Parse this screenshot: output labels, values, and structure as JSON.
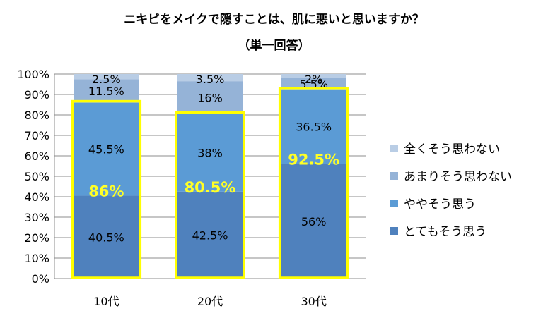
{
  "title": "ニキビをメイクで隠すことは、肌に悪いと思いますか？",
  "subtitle": "（単一回答）",
  "chart_data": {
    "type": "bar",
    "stacked": true,
    "categories": [
      "10代",
      "20代",
      "30代"
    ],
    "series": [
      {
        "name": "とてもそう思う",
        "values": [
          40.5,
          42.5,
          56
        ],
        "labels": [
          "40.5%",
          "42.5%",
          "56%"
        ],
        "color": "#4f81bd"
      },
      {
        "name": "ややそう思う",
        "values": [
          45.5,
          38,
          36.5
        ],
        "labels": [
          "45.5%",
          "38%",
          "36.5%"
        ],
        "color": "#5b9bd5"
      },
      {
        "name": "あまりそう思わない",
        "values": [
          11.5,
          16,
          5.5
        ],
        "labels": [
          "11.5%",
          "16%",
          "5.5%"
        ],
        "color": "#95b3d7"
      },
      {
        "name": "全くそう思わない",
        "values": [
          2.5,
          3.5,
          2
        ],
        "labels": [
          "2.5%",
          "3.5%",
          "2%"
        ],
        "color": "#b9cde5"
      }
    ],
    "highlight_totals": {
      "values": [
        86,
        80.5,
        92.5
      ],
      "labels": [
        "86%",
        "80.5%",
        "92.5%"
      ],
      "color": "#ffff00"
    },
    "ylim": [
      0,
      100
    ],
    "yticks": [
      "0%",
      "10%",
      "20%",
      "30%",
      "40%",
      "50%",
      "60%",
      "70%",
      "80%",
      "90%",
      "100%"
    ],
    "legend_position": "right",
    "xlabel": "",
    "ylabel": ""
  }
}
